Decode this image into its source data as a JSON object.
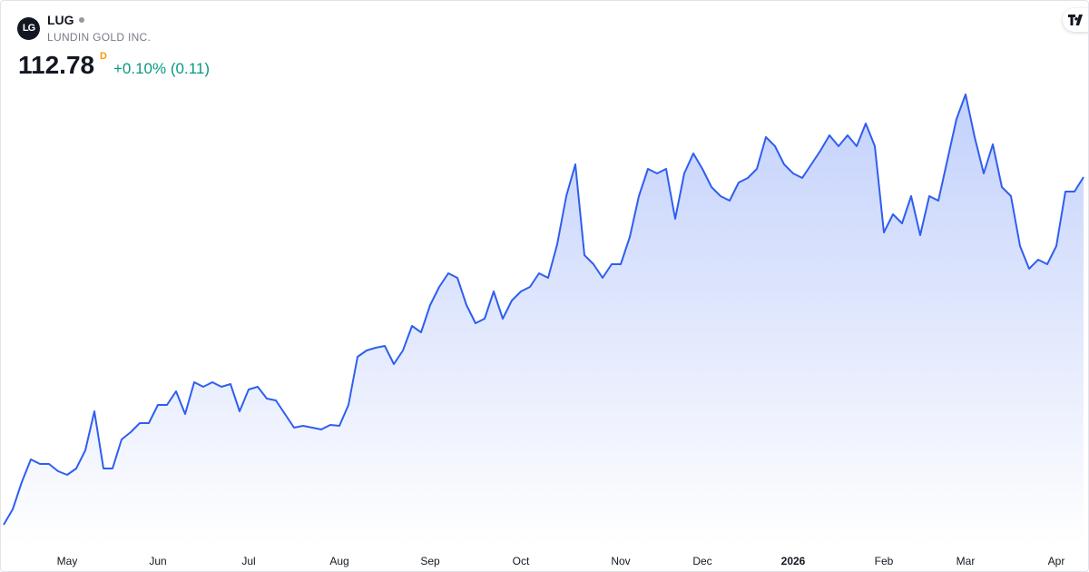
{
  "header": {
    "logo": "LG",
    "symbol": "LUG",
    "name": "LUNDIN GOLD INC.",
    "price": "112.78",
    "interval": "D",
    "change": "+0.10% (0.11)"
  },
  "chart_data": {
    "type": "area",
    "color": "#2f5ef0",
    "categories": [
      null,
      null,
      null,
      null,
      null,
      null,
      null,
      "May",
      null,
      null,
      null,
      null,
      null,
      null,
      null,
      null,
      null,
      "Jun",
      null,
      null,
      null,
      null,
      null,
      null,
      null,
      null,
      null,
      "Jul",
      null,
      null,
      null,
      null,
      null,
      null,
      null,
      null,
      null,
      "Aug",
      null,
      null,
      null,
      null,
      null,
      null,
      null,
      null,
      null,
      "Sep",
      null,
      null,
      null,
      null,
      null,
      null,
      null,
      null,
      null,
      "Oct",
      null,
      null,
      null,
      null,
      null,
      null,
      null,
      null,
      null,
      null,
      "Nov",
      null,
      null,
      null,
      null,
      null,
      null,
      null,
      null,
      "Dec",
      null,
      null,
      null,
      null,
      null,
      null,
      null,
      null,
      null,
      "2026",
      null,
      null,
      null,
      null,
      null,
      null,
      null,
      null,
      null,
      "Feb",
      null,
      null,
      null,
      null,
      null,
      null,
      null,
      null,
      "Mar",
      null,
      null,
      null,
      null,
      null,
      null,
      null,
      null,
      null,
      "Apr",
      null,
      null,
      null
    ],
    "values": [
      40.01,
      43.24,
      48.94,
      53.69,
      52.74,
      52.74,
      51.22,
      50.46,
      51.79,
      55.59,
      63.76,
      51.79,
      51.79,
      57.87,
      59.39,
      61.29,
      61.29,
      65.09,
      65.09,
      67.94,
      63.19,
      69.84,
      68.89,
      69.84,
      68.89,
      69.46,
      63.76,
      68.32,
      68.89,
      66.42,
      66.04,
      63.19,
      60.34,
      60.72,
      60.34,
      59.96,
      60.91,
      60.72,
      65.09,
      75.16,
      76.49,
      77.06,
      77.44,
      73.64,
      76.49,
      81.62,
      80.29,
      85.99,
      89.79,
      92.64,
      91.69,
      85.99,
      82.19,
      83.14,
      88.84,
      83.14,
      86.94,
      88.84,
      89.79,
      92.64,
      91.69,
      98.72,
      108.79,
      115.44,
      96.44,
      94.54,
      91.69,
      94.54,
      94.54,
      100.24,
      108.79,
      114.49,
      113.54,
      114.49,
      104.04,
      113.54,
      117.72,
      114.49,
      110.69,
      108.79,
      107.84,
      111.64,
      112.59,
      114.49,
      121.14,
      119.24,
      115.44,
      113.54,
      112.59,
      115.44,
      118.29,
      121.52,
      119.24,
      121.52,
      119.24,
      123.99,
      119.24,
      101.19,
      104.99,
      103.09,
      108.79,
      100.62,
      108.79,
      107.84,
      116.39,
      124.94,
      130.07,
      121.14,
      113.54,
      119.62,
      110.69,
      108.79,
      98.34,
      93.59,
      95.49,
      94.54,
      98.34,
      109.74,
      109.74,
      112.78
    ]
  }
}
